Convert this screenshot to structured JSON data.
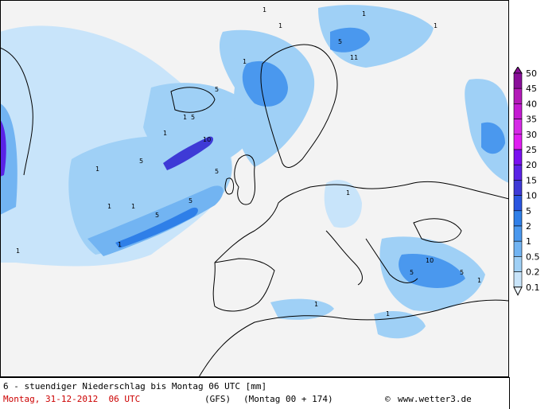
{
  "title": "6 - stuendiger Niederschlag bis Montag 06 UTC [mm]",
  "run_time": "Montag, 31-12-2012  06 UTC",
  "model": "(GFS)",
  "forecast": "(Montag 00 + 174)",
  "copyright_text": "www.wetter3.de",
  "legend": {
    "levels": [
      "50",
      "45",
      "40",
      "35",
      "30",
      "25",
      "20",
      "15",
      "10",
      "5",
      "2",
      "1",
      "0.5",
      "0.2",
      "0.1"
    ],
    "colors": [
      "#8a0f9a",
      "#b31ab8",
      "#c41ad2",
      "#d62ae6",
      "#e01df2",
      "#7a10f0",
      "#5a23e6",
      "#3e3ad6",
      "#2a55e0",
      "#2f7fe8",
      "#4a98ee",
      "#72b4f2",
      "#9fd0f6",
      "#c8e4fa",
      "#eef6fe"
    ]
  },
  "map_labels": [
    {
      "text": "1"
    },
    {
      "text": "5"
    },
    {
      "text": "1"
    },
    {
      "text": "10"
    },
    {
      "text": "5"
    },
    {
      "text": "1"
    },
    {
      "text": "5"
    },
    {
      "text": "1"
    },
    {
      "text": "5"
    },
    {
      "text": "1"
    },
    {
      "text": "1"
    },
    {
      "text": "5"
    },
    {
      "text": "1"
    },
    {
      "text": "5"
    },
    {
      "text": "1"
    },
    {
      "text": "1"
    },
    {
      "text": "1"
    },
    {
      "text": "10"
    },
    {
      "text": "5"
    },
    {
      "text": "1"
    },
    {
      "text": "5"
    },
    {
      "text": "1"
    },
    {
      "text": "1"
    },
    {
      "text": "1"
    },
    {
      "text": "1"
    },
    {
      "text": "11"
    },
    {
      "text": "5"
    },
    {
      "text": "1"
    }
  ]
}
